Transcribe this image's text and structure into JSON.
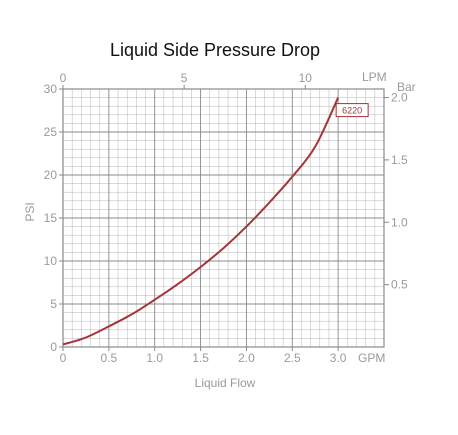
{
  "chart_data": {
    "type": "line",
    "title": "Liquid Side Pressure Drop",
    "xlabel": "Liquid Flow",
    "ylabel": "PSI",
    "x_unit": "GPM",
    "x_top_unit": "LPM",
    "y_right_unit": "Bar",
    "xlim": [
      0,
      3.5
    ],
    "ylim": [
      0,
      30
    ],
    "x_ticks": [
      "0",
      "0.5",
      "1.0",
      "1.5",
      "2.0",
      "2.5",
      "3.0"
    ],
    "y_ticks": [
      "0",
      "5",
      "10",
      "15",
      "20",
      "25",
      "30"
    ],
    "x_top_ticks": [
      "0",
      "5",
      "10"
    ],
    "y_right_ticks": [
      "0.5",
      "1.0",
      "1.5",
      "2.0"
    ],
    "grid": true,
    "colors": {
      "series": "#a4343a",
      "grid": "#b5b5b5",
      "axis": "#8a8a8a"
    },
    "series": [
      {
        "name": "6220",
        "x": [
          0,
          0.25,
          0.5,
          0.75,
          1.0,
          1.25,
          1.5,
          1.75,
          2.0,
          2.25,
          2.5,
          2.75,
          3.0
        ],
        "y": [
          0.3,
          1.1,
          2.4,
          3.8,
          5.5,
          7.3,
          9.3,
          11.5,
          14.0,
          16.8,
          19.8,
          23.3,
          29.0
        ]
      }
    ]
  }
}
